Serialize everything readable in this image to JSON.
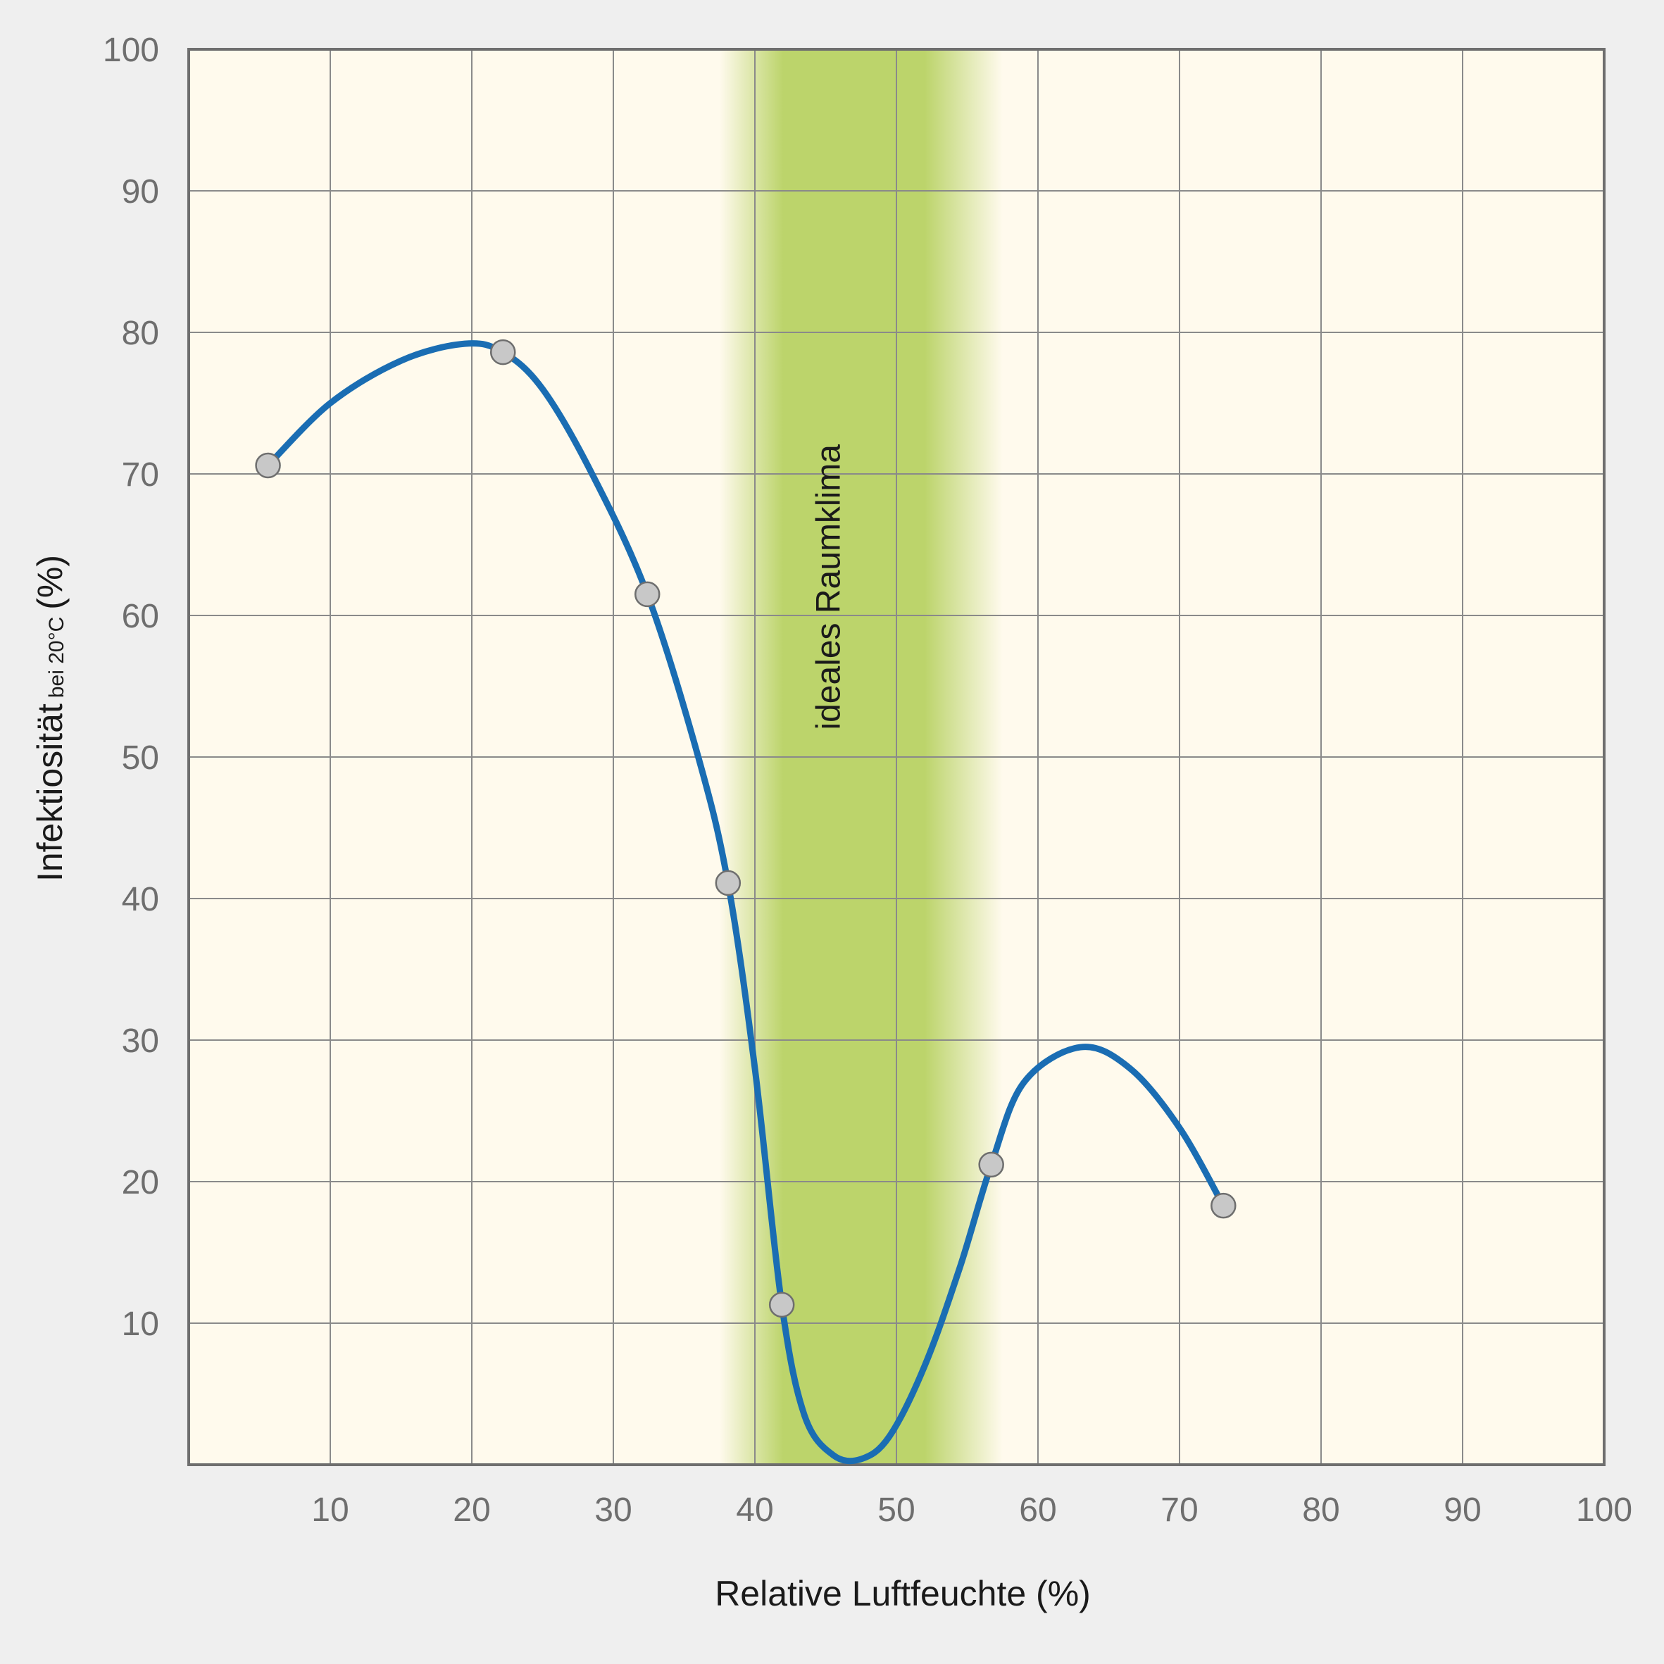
{
  "chart_data": {
    "type": "line",
    "title": "",
    "xlabel": "Relative Luftfeuchte (%)",
    "ylabel": "Infektiosität",
    "ylabel_sub": "bei 20°C",
    "ylabel_unit": "(%)",
    "xlim": [
      0,
      100
    ],
    "ylim": [
      0,
      100
    ],
    "x_ticks": [
      10,
      20,
      30,
      40,
      50,
      60,
      70,
      80,
      90,
      100
    ],
    "y_ticks": [
      10,
      20,
      30,
      40,
      50,
      60,
      70,
      80,
      90,
      100
    ],
    "grid": true,
    "legend": "none",
    "highlight_band": {
      "label": "ideales Raumklima",
      "core_range": [
        42,
        52
      ],
      "fade_range": [
        37.5,
        57.5
      ],
      "color": "#bcd46b"
    },
    "series": [
      {
        "color": "#1a6db3",
        "points": [
          {
            "x": 5.6,
            "y": 70.6
          },
          {
            "x": 22.2,
            "y": 78.6
          },
          {
            "x": 32.4,
            "y": 61.5
          },
          {
            "x": 38.1,
            "y": 41.1
          },
          {
            "x": 41.9,
            "y": 11.3
          },
          {
            "x": 56.7,
            "y": 21.2
          },
          {
            "x": 73.1,
            "y": 18.3
          }
        ],
        "curve": [
          {
            "x": 5.6,
            "y": 70.6
          },
          {
            "x": 10,
            "y": 75.0
          },
          {
            "x": 15,
            "y": 78.0
          },
          {
            "x": 19.5,
            "y": 79.2
          },
          {
            "x": 22.2,
            "y": 78.6
          },
          {
            "x": 25,
            "y": 76.0
          },
          {
            "x": 28.5,
            "y": 70.0
          },
          {
            "x": 32.4,
            "y": 61.5
          },
          {
            "x": 36.0,
            "y": 50.0
          },
          {
            "x": 38.1,
            "y": 41.1
          },
          {
            "x": 40.0,
            "y": 28.0
          },
          {
            "x": 41.9,
            "y": 11.3
          },
          {
            "x": 43.5,
            "y": 3.5
          },
          {
            "x": 45.5,
            "y": 0.7
          },
          {
            "x": 47.5,
            "y": 0.4
          },
          {
            "x": 49.5,
            "y": 2.0
          },
          {
            "x": 52.0,
            "y": 7.0
          },
          {
            "x": 54.5,
            "y": 14.0
          },
          {
            "x": 56.7,
            "y": 21.2
          },
          {
            "x": 59.0,
            "y": 27.0
          },
          {
            "x": 63.0,
            "y": 29.5
          },
          {
            "x": 66.5,
            "y": 28.0
          },
          {
            "x": 70.0,
            "y": 23.8
          },
          {
            "x": 73.1,
            "y": 18.3
          }
        ]
      }
    ]
  }
}
